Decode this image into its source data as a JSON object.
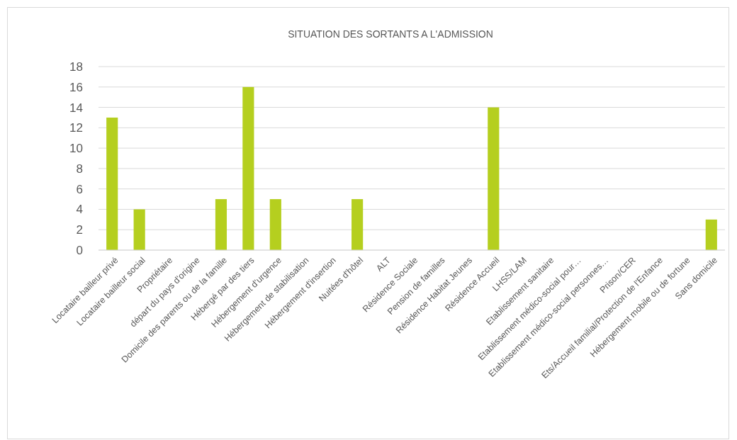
{
  "chart_data": {
    "type": "bar",
    "title": "SITUATION DES SORTANTS A L'ADMISSION",
    "categories": [
      "Locataire bailleur privé",
      "Locataire bailleur social",
      "Propriétaire",
      "départ du pays d'origine",
      "Domicile des parents ou de la famille",
      "Hébergé par des tiers",
      "Hébergement d'urgence",
      "Hébergement de stabilisation",
      "Hébergement d'insertion",
      "Nuitées d'hôtel",
      "ALT",
      "Résidence Sociale",
      "Pension de familles",
      "Résidence Habitat Jeunes",
      "Résidence Accueil",
      "LHSS/LAM",
      "Etablissement sanitaire",
      "Etablissement médico-social pour…",
      "Etablissement médico-social personnes…",
      "Prison/CER",
      "Ets/Accueil familial/Protection de l'Enfance",
      "Hébergement mobile ou de fortune",
      "Sans domicile"
    ],
    "values": [
      13,
      4,
      0,
      0,
      5,
      16,
      5,
      0,
      0,
      5,
      0,
      0,
      0,
      0,
      14,
      0,
      0,
      0,
      0,
      0,
      0,
      0,
      3
    ],
    "color": "#b5cf1f",
    "ylim": [
      0,
      18
    ],
    "yticks": [
      0,
      2,
      4,
      6,
      8,
      10,
      12,
      14,
      16,
      18
    ],
    "grid": "y"
  }
}
